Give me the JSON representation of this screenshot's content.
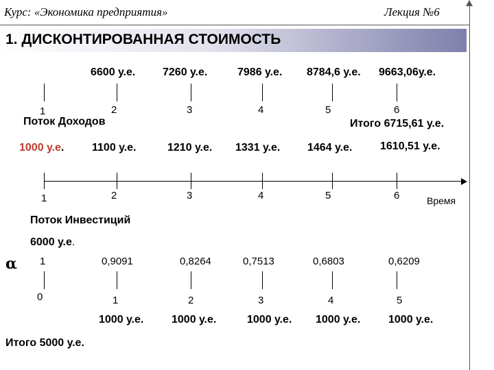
{
  "header": {
    "course": "Курс: «Экономика предприятия»",
    "lecture": "Лекция №6"
  },
  "title": "1. ДИСКОНТИРОВАННАЯ СТОИМОСТЬ",
  "income_flow": {
    "values": [
      "6600 у.е.",
      "7260 у.е.",
      "7986 у.е.",
      "8784,6 у.е.",
      "9663,06у.е."
    ],
    "periods": [
      "1",
      "2",
      "3",
      "4",
      "5",
      "6"
    ],
    "label": "Поток Доходов",
    "total": "Итого 6715,61 у.е."
  },
  "time_axis": {
    "first_value": "1000 у.е",
    "first_value_dot": ".",
    "values": [
      "1100 у.е.",
      "1210 у.е.",
      "1331 у.е.",
      "1464 у.е.",
      "1610,51 у.е."
    ],
    "periods": [
      "1",
      "2",
      "3",
      "4",
      "5",
      "6"
    ],
    "axis_label": "Время",
    "first_value_color": "#c0392b"
  },
  "investment_flow": {
    "label": "Поток Инвестиций",
    "amount": "6000 у.е",
    "amount_dot": "."
  },
  "discount": {
    "symbol": "α",
    "factors": [
      "1",
      "0,9091",
      "0,8264",
      "0,7513",
      "0,6803",
      "0,6209"
    ],
    "periods": [
      "0",
      "1",
      "2",
      "3",
      "4",
      "5"
    ],
    "payments": [
      "1000 у.е.",
      "1000 у.е.",
      "1000 у.е.",
      "1000 у.е.",
      "1000 у.е."
    ],
    "total": "Итого 5000 у.е."
  }
}
